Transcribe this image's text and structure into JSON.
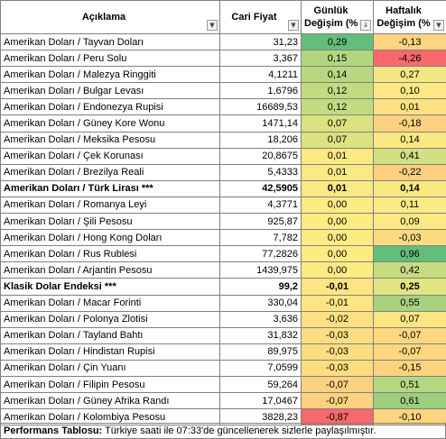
{
  "header": {
    "col1": "Açıklama",
    "col2": "Cari Fiyat",
    "col3_line1": "Günlük",
    "col3_line2": "Değişim (%",
    "col4_line1": "Haftalık",
    "col4_line2": "Değişim (%",
    "filter_icon": "dropdown-arrow-icon",
    "sort_icon": "sort-descending-icon"
  },
  "rows": [
    {
      "name": "Amerikan Doları / Tayvan Doları",
      "price": "31,23",
      "daily": "0,29",
      "weekly": "-0,13",
      "daily_color": "#63be7b",
      "weekly_color": "#fdd47f",
      "bold": false
    },
    {
      "name": "Amerikan Doları / Peru Solu",
      "price": "3,367",
      "daily": "0,15",
      "weekly": "-4,26",
      "daily_color": "#b2d67f",
      "weekly_color": "#f8696b",
      "bold": false
    },
    {
      "name": "Amerikan Doları / Malezya Ringgiti",
      "price": "4,1211",
      "daily": "0,14",
      "weekly": "0,27",
      "daily_color": "#b7d880",
      "weekly_color": "#f3e883",
      "bold": false
    },
    {
      "name": "Amerikan Doları / Bulgar Levası",
      "price": "1,6796",
      "daily": "0,12",
      "weekly": "0,10",
      "daily_color": "#c2db80",
      "weekly_color": "#fde883",
      "bold": false
    },
    {
      "name": "Amerikan Doları / Endonezya Rupisi",
      "price": "16689,53",
      "daily": "0,12",
      "weekly": "0,01",
      "daily_color": "#c2db80",
      "weekly_color": "#fee182",
      "bold": false
    },
    {
      "name": "Amerikan Doları / Güney Kore Wonu",
      "price": "1471,14",
      "daily": "0,07",
      "weekly": "-0,18",
      "daily_color": "#dbe281",
      "weekly_color": "#fdd17f",
      "bold": false
    },
    {
      "name": "Amerikan Doları / Meksika Pesosu",
      "price": "18,206",
      "daily": "0,07",
      "weekly": "0,14",
      "daily_color": "#dbe281",
      "weekly_color": "#fae983",
      "bold": false
    },
    {
      "name": "Amerikan Doları / Çek Korunası",
      "price": "20,8675",
      "daily": "0,01",
      "weekly": "0,41",
      "daily_color": "#fbe983",
      "weekly_color": "#d2e081",
      "bold": false
    },
    {
      "name": "Amerikan Doları / Brezilya Reali",
      "price": "5,4333",
      "daily": "0,01",
      "weekly": "-0,22",
      "daily_color": "#fbe983",
      "weekly_color": "#fdcf7e",
      "bold": false
    },
    {
      "name": "Amerikan Doları / Türk Lirası ***",
      "price": "42,5905",
      "daily": "0,01",
      "weekly": "0,14",
      "daily_color": "#fbe983",
      "weekly_color": "#fae983",
      "bold": true
    },
    {
      "name": "Amerikan Doları / Romanya Leyi",
      "price": "4,3771",
      "daily": "0,00",
      "weekly": "0,11",
      "daily_color": "#ffeb84",
      "weekly_color": "#fceb84",
      "bold": false
    },
    {
      "name": "Amerikan Doları / Şili Pesosu",
      "price": "925,87",
      "daily": "0,00",
      "weekly": "0,09",
      "daily_color": "#ffeb84",
      "weekly_color": "#fde883",
      "bold": false
    },
    {
      "name": "Amerikan Doları / Hong Kong Doları",
      "price": "7,782",
      "daily": "0,00",
      "weekly": "-0,03",
      "daily_color": "#ffeb84",
      "weekly_color": "#fedb81",
      "bold": false
    },
    {
      "name": "Amerikan Doları / Rus Rublesi",
      "price": "77,2826",
      "daily": "0,00",
      "weekly": "0,96",
      "daily_color": "#ffeb84",
      "weekly_color": "#63be7b",
      "bold": false
    },
    {
      "name": "Amerikan Doları / Arjantin Pesosu",
      "price": "1439,975",
      "daily": "0,00",
      "weekly": "0,42",
      "daily_color": "#ffeb84",
      "weekly_color": "#c6dc80",
      "bold": false
    },
    {
      "name": "Klasik Dolar Endeksi ***",
      "price": "99,2",
      "daily": "-0,01",
      "weekly": "0,25",
      "daily_color": "#fee482",
      "weekly_color": "#e2e382",
      "bold": true
    },
    {
      "name": "Amerikan Doları / Macar Forinti",
      "price": "330,04",
      "daily": "-0,01",
      "weekly": "0,55",
      "daily_color": "#fee482",
      "weekly_color": "#a8d27f",
      "bold": false
    },
    {
      "name": "Amerikan Doları / Polonya Zlotisi",
      "price": "3,636",
      "daily": "-0,02",
      "weekly": "0,07",
      "daily_color": "#fee082",
      "weekly_color": "#fee582",
      "bold": false
    },
    {
      "name": "Amerikan Doları / Tayland Bahtı",
      "price": "31,832",
      "daily": "-0,03",
      "weekly": "-0,07",
      "daily_color": "#fedd81",
      "weekly_color": "#fed780",
      "bold": false
    },
    {
      "name": "Amerikan Doları / Hindistan Rupisi",
      "price": "89,975",
      "daily": "-0,03",
      "weekly": "-0,07",
      "daily_color": "#fedd81",
      "weekly_color": "#fed780",
      "bold": false
    },
    {
      "name": "Amerikan Doları / Çin Yuanı",
      "price": "7,0599",
      "daily": "-0,03",
      "weekly": "-0,15",
      "daily_color": "#fedd81",
      "weekly_color": "#fdd27f",
      "bold": false
    },
    {
      "name": "Amerikan Doları / Filipin Pesosu",
      "price": "59,264",
      "daily": "-0,07",
      "weekly": "0,51",
      "daily_color": "#fdd27f",
      "weekly_color": "#b5d780",
      "bold": false
    },
    {
      "name": "Amerikan Doları / Güney Afrika Randı",
      "price": "17,0467",
      "daily": "-0,07",
      "weekly": "0,61",
      "daily_color": "#fdd27f",
      "weekly_color": "#9bcf7e",
      "bold": false
    },
    {
      "name": "Amerikan Doları / Kolombiya Pesosu",
      "price": "3828,23",
      "daily": "-0,87",
      "weekly": "-0,10",
      "daily_color": "#f8696b",
      "weekly_color": "#fdd47f",
      "bold": false
    }
  ],
  "footer": {
    "label": "Performans Tablosu:",
    "text": " Türkiye saati ile 07:33'de güncellenerek sizlerle paylaşılmıştır."
  }
}
